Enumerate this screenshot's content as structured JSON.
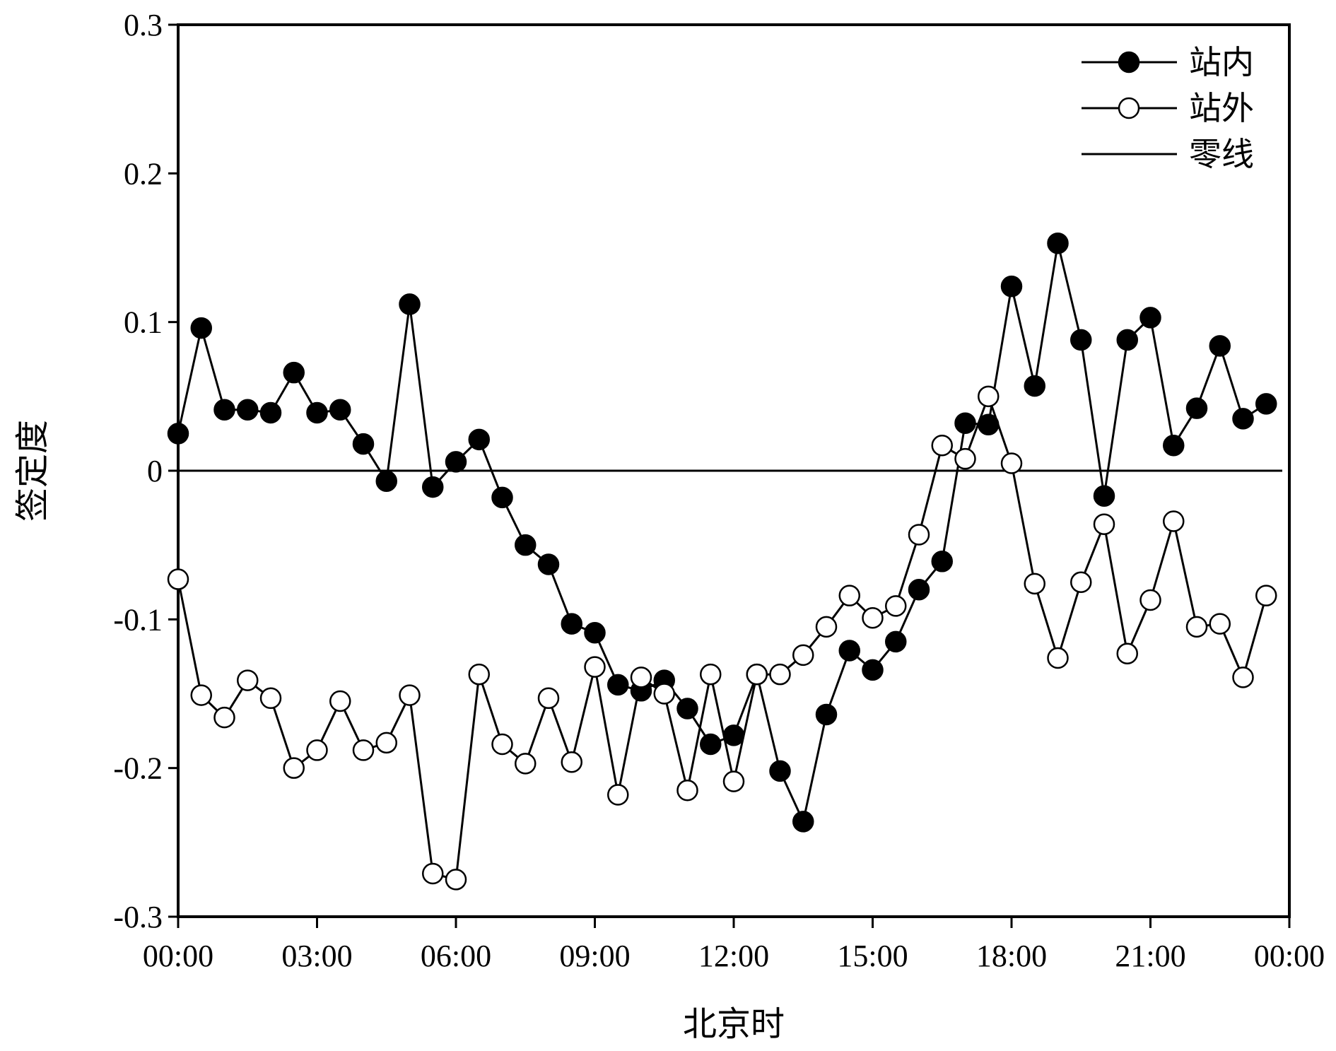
{
  "chart_data": {
    "type": "line",
    "title": "",
    "xlabel": "北京时",
    "ylabel": "签定度",
    "ylim": [
      -0.3,
      0.3
    ],
    "yticks": [
      0.3,
      0.2,
      0.1,
      0,
      -0.1,
      -0.2,
      -0.3
    ],
    "ytick_labels": [
      "0.3",
      "0.2",
      "0.1",
      "0",
      "-0.1",
      "-0.2",
      "-0.3"
    ],
    "xlim": [
      0,
      24
    ],
    "xticks": [
      0,
      3,
      6,
      9,
      12,
      15,
      18,
      21,
      24
    ],
    "xtick_labels": [
      "00:00",
      "03:00",
      "06:00",
      "09:00",
      "12:00",
      "15:00",
      "18:00",
      "21:00",
      "00:00"
    ],
    "x_unit": "hours",
    "x": [
      0,
      0.5,
      1,
      1.5,
      2,
      2.5,
      3,
      3.5,
      4,
      4.5,
      5,
      5.5,
      6,
      6.5,
      7,
      7.5,
      8,
      8.5,
      9,
      9.5,
      10,
      10.5,
      11,
      11.5,
      12,
      12.5,
      13,
      13.5,
      14,
      14.5,
      15,
      15.5,
      16,
      16.5,
      17,
      17.5,
      18,
      18.5,
      19,
      19.5,
      20,
      20.5,
      21,
      21.5,
      22,
      22.5,
      23,
      23.5
    ],
    "series": [
      {
        "name": "站内",
        "marker": "filled-circle",
        "color": "#000000",
        "values": [
          0.025,
          0.096,
          0.041,
          0.041,
          0.039,
          0.066,
          0.039,
          0.041,
          0.018,
          -0.007,
          0.112,
          -0.011,
          0.006,
          0.021,
          -0.018,
          -0.05,
          -0.063,
          -0.103,
          -0.109,
          -0.144,
          -0.148,
          -0.141,
          -0.16,
          -0.184,
          -0.178,
          -0.137,
          -0.202,
          -0.236,
          -0.164,
          -0.121,
          -0.134,
          -0.115,
          -0.08,
          -0.061,
          0.032,
          0.031,
          0.124,
          0.057,
          0.153,
          0.088,
          -0.017,
          0.088,
          0.103,
          0.017,
          0.042,
          0.084,
          0.035,
          0.045
        ]
      },
      {
        "name": "站外",
        "marker": "open-circle",
        "color": "#000000",
        "values": [
          -0.073,
          -0.151,
          -0.166,
          -0.141,
          -0.153,
          -0.2,
          -0.188,
          -0.155,
          -0.188,
          -0.183,
          -0.151,
          -0.271,
          -0.275,
          -0.137,
          -0.184,
          -0.197,
          -0.153,
          -0.196,
          -0.132,
          -0.218,
          -0.139,
          -0.15,
          -0.215,
          -0.137,
          -0.209,
          -0.137,
          -0.137,
          -0.124,
          -0.105,
          -0.084,
          -0.099,
          -0.091,
          -0.043,
          0.017,
          0.008,
          0.05,
          0.005,
          -0.076,
          -0.126,
          -0.075,
          -0.036,
          -0.123,
          -0.087,
          -0.034,
          -0.105,
          -0.103,
          -0.139,
          -0.084
        ]
      }
    ],
    "reference_lines": [
      {
        "name": "零线",
        "y": 0
      }
    ],
    "legend": {
      "position": "top-right",
      "items": [
        "站内",
        "站外",
        "零线"
      ]
    },
    "grid": false
  }
}
